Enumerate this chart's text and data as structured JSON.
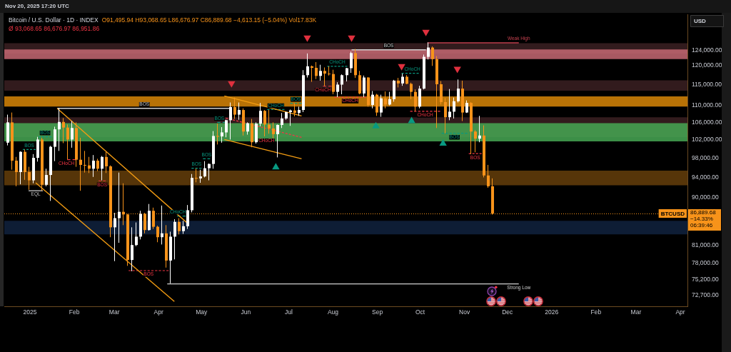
{
  "chart_data": {
    "type": "candlestick",
    "title": "Bitcoin / U.S. Dollar · 1D · INDEX",
    "subtitle": "O91,495.94 H93,068.65 L86,676.97 C86,889.68 −4,613.15 (−5.04%) Vol17.83K",
    "ylabel": "USD",
    "log": true,
    "xlim": [
      "2024-12-14",
      "2026-04-06"
    ],
    "ylim": [
      70950,
      134200
    ],
    "xticks": [
      {
        "value": "2025-01-01",
        "label": "2025"
      },
      {
        "value": "2025-02-01",
        "label": "Feb"
      },
      {
        "value": "2025-03-01",
        "label": "Mar"
      },
      {
        "value": "2025-04-01",
        "label": "Apr"
      },
      {
        "value": "2025-05-01",
        "label": "May"
      },
      {
        "value": "2025-06-01",
        "label": "Jun"
      },
      {
        "value": "2025-07-01",
        "label": "Jul"
      },
      {
        "value": "2025-08-01",
        "label": "Aug"
      },
      {
        "value": "2025-09-01",
        "label": "Sep"
      },
      {
        "value": "2025-10-01",
        "label": "Oct"
      },
      {
        "value": "2025-11-01",
        "label": "Nov"
      },
      {
        "value": "2025-12-01",
        "label": "Dec"
      },
      {
        "value": "2026-01-01",
        "label": "2026"
      },
      {
        "value": "2026-02-01",
        "label": "Feb"
      },
      {
        "value": "2026-03-01",
        "label": "Mar"
      },
      {
        "value": "2026-04-01",
        "label": "Apr"
      }
    ],
    "yticks": [
      {
        "value": 72700,
        "label": "72,700.00"
      },
      {
        "value": 75200,
        "label": "75,200.00"
      },
      {
        "value": 78000,
        "label": "78,000.00"
      },
      {
        "value": 81000,
        "label": "81,000.00"
      },
      {
        "value": 90000,
        "label": "90,000.00"
      },
      {
        "value": 94000,
        "label": "94,000.00"
      },
      {
        "value": 98000,
        "label": "98,000.00"
      },
      {
        "value": 102000,
        "label": "102,000.00"
      },
      {
        "value": 106000,
        "label": "106,000.00"
      },
      {
        "value": 110000,
        "label": "110,000.00"
      },
      {
        "value": 115000,
        "label": "115,000.00"
      },
      {
        "value": 120000,
        "label": "120,000.00"
      },
      {
        "value": 124000,
        "label": "124,000.00"
      }
    ],
    "x": [
      "2024-12-16",
      "2024-12-19",
      "2024-12-22",
      "2024-12-25",
      "2024-12-28",
      "2024-12-31",
      "2025-01-03",
      "2025-01-06",
      "2025-01-09",
      "2025-01-12",
      "2025-01-15",
      "2025-01-18",
      "2025-01-21",
      "2025-01-24",
      "2025-01-27",
      "2025-01-30",
      "2025-02-02",
      "2025-02-05",
      "2025-02-08",
      "2025-02-11",
      "2025-02-14",
      "2025-02-17",
      "2025-02-20",
      "2025-02-23",
      "2025-02-26",
      "2025-03-01",
      "2025-03-04",
      "2025-03-07",
      "2025-03-10",
      "2025-03-13",
      "2025-03-16",
      "2025-03-19",
      "2025-03-22",
      "2025-03-25",
      "2025-03-28",
      "2025-03-31",
      "2025-04-03",
      "2025-04-06",
      "2025-04-09",
      "2025-04-12",
      "2025-04-15",
      "2025-04-18",
      "2025-04-21",
      "2025-04-24",
      "2025-04-27",
      "2025-04-30",
      "2025-05-03",
      "2025-05-06",
      "2025-05-09",
      "2025-05-12",
      "2025-05-15",
      "2025-05-18",
      "2025-05-21",
      "2025-05-24",
      "2025-05-27",
      "2025-05-30",
      "2025-06-02",
      "2025-06-05",
      "2025-06-08",
      "2025-06-11",
      "2025-06-14",
      "2025-06-17",
      "2025-06-20",
      "2025-06-23",
      "2025-06-26",
      "2025-06-29",
      "2025-07-02",
      "2025-07-05",
      "2025-07-08",
      "2025-07-11",
      "2025-07-14",
      "2025-07-17",
      "2025-07-20",
      "2025-07-23",
      "2025-07-26",
      "2025-07-29",
      "2025-08-01",
      "2025-08-04",
      "2025-08-07",
      "2025-08-10",
      "2025-08-13",
      "2025-08-16",
      "2025-08-19",
      "2025-08-22",
      "2025-08-25",
      "2025-08-28",
      "2025-08-31",
      "2025-09-03",
      "2025-09-06",
      "2025-09-09",
      "2025-09-12",
      "2025-09-15",
      "2025-09-18",
      "2025-09-21",
      "2025-09-24",
      "2025-09-27",
      "2025-09-30",
      "2025-10-03",
      "2025-10-06",
      "2025-10-09",
      "2025-10-12",
      "2025-10-15",
      "2025-10-18",
      "2025-10-21",
      "2025-10-24",
      "2025-10-27",
      "2025-10-30",
      "2025-11-02",
      "2025-11-05",
      "2025-11-08",
      "2025-11-11",
      "2025-11-14",
      "2025-11-17",
      "2025-11-20"
    ],
    "ohlc": [
      [
        101400,
        107800,
        100800,
        106000
      ],
      [
        106000,
        108300,
        95600,
        97500
      ],
      [
        97500,
        98300,
        92200,
        95100
      ],
      [
        95100,
        99500,
        92600,
        99400
      ],
      [
        99400,
        99900,
        93500,
        95100
      ],
      [
        95100,
        96200,
        91500,
        93400
      ],
      [
        93400,
        98900,
        92800,
        98100
      ],
      [
        98100,
        102700,
        97300,
        102100
      ],
      [
        102100,
        102500,
        91300,
        92500
      ],
      [
        92500,
        95800,
        92200,
        94500
      ],
      [
        94500,
        100700,
        89300,
        100500
      ],
      [
        100500,
        105000,
        97400,
        104400
      ],
      [
        104400,
        109400,
        99600,
        106100
      ],
      [
        106100,
        107000,
        101300,
        104800
      ],
      [
        104800,
        105500,
        97800,
        102100
      ],
      [
        102100,
        106300,
        100300,
        104700
      ],
      [
        104700,
        106000,
        96200,
        97700
      ],
      [
        97700,
        102500,
        91300,
        96600
      ],
      [
        96600,
        99600,
        95000,
        96500
      ],
      [
        96500,
        98300,
        94900,
        95800
      ],
      [
        95800,
        98700,
        94100,
        97500
      ],
      [
        97500,
        97900,
        95300,
        95800
      ],
      [
        95800,
        98500,
        93400,
        98300
      ],
      [
        98300,
        99500,
        94900,
        96300
      ],
      [
        96300,
        96500,
        82500,
        84300
      ],
      [
        84300,
        87000,
        78300,
        86000
      ],
      [
        86000,
        95000,
        81500,
        87200
      ],
      [
        87200,
        92800,
        84700,
        86700
      ],
      [
        86700,
        86800,
        77500,
        78500
      ],
      [
        78500,
        84300,
        76600,
        81100
      ],
      [
        81100,
        85200,
        80900,
        82600
      ],
      [
        82600,
        87400,
        82100,
        86800
      ],
      [
        86800,
        87000,
        83200,
        83800
      ],
      [
        83800,
        88700,
        83700,
        87400
      ],
      [
        87400,
        88000,
        84000,
        84400
      ],
      [
        84400,
        84600,
        81600,
        82500
      ],
      [
        82500,
        88400,
        81200,
        83200
      ],
      [
        83200,
        84700,
        77200,
        78400
      ],
      [
        78400,
        83500,
        74600,
        82600
      ],
      [
        82600,
        85800,
        78600,
        85300
      ],
      [
        85300,
        86000,
        83000,
        83600
      ],
      [
        83600,
        85500,
        83100,
        84500
      ],
      [
        84500,
        88500,
        84000,
        87500
      ],
      [
        87500,
        94700,
        87100,
        93900
      ],
      [
        93900,
        95800,
        93000,
        93800
      ],
      [
        93800,
        95600,
        92900,
        94200
      ],
      [
        94200,
        97400,
        94000,
        95900
      ],
      [
        95900,
        96900,
        93400,
        96800
      ],
      [
        96800,
        104000,
        95800,
        102900
      ],
      [
        102900,
        105700,
        101000,
        102800
      ],
      [
        102800,
        104900,
        101400,
        103700
      ],
      [
        103700,
        106600,
        102600,
        106500
      ],
      [
        106500,
        110700,
        102100,
        109600
      ],
      [
        109600,
        111900,
        106800,
        107800
      ],
      [
        107800,
        110700,
        106600,
        108900
      ],
      [
        108900,
        109300,
        103000,
        103900
      ],
      [
        103900,
        106000,
        103200,
        105800
      ],
      [
        105800,
        106800,
        100400,
        101500
      ],
      [
        101500,
        106000,
        101200,
        105700
      ],
      [
        105700,
        110600,
        105100,
        108700
      ],
      [
        108700,
        108900,
        102800,
        105500
      ],
      [
        105500,
        108900,
        103400,
        104600
      ],
      [
        104600,
        106000,
        102400,
        103300
      ],
      [
        103300,
        105500,
        98200,
        105400
      ],
      [
        105400,
        108200,
        104700,
        106900
      ],
      [
        106900,
        108500,
        106600,
        108400
      ],
      [
        108400,
        109000,
        105200,
        108800
      ],
      [
        108800,
        110500,
        107400,
        108200
      ],
      [
        108200,
        109700,
        107500,
        108900
      ],
      [
        108900,
        118800,
        108400,
        117500
      ],
      [
        117500,
        123200,
        116900,
        119800
      ],
      [
        119800,
        120000,
        115800,
        119400
      ],
      [
        119400,
        120900,
        116500,
        117300
      ],
      [
        117300,
        120200,
        116100,
        118600
      ],
      [
        118600,
        119500,
        114700,
        117900
      ],
      [
        117900,
        119800,
        117400,
        117800
      ],
      [
        117800,
        118900,
        112700,
        113300
      ],
      [
        113300,
        115700,
        112000,
        115100
      ],
      [
        115100,
        117700,
        112700,
        117500
      ],
      [
        117500,
        119400,
        115900,
        119300
      ],
      [
        119300,
        123700,
        118100,
        123300
      ],
      [
        123300,
        124400,
        116800,
        117500
      ],
      [
        117500,
        118600,
        112700,
        112900
      ],
      [
        112900,
        117400,
        112000,
        116900
      ],
      [
        116900,
        117000,
        109700,
        110100
      ],
      [
        110100,
        113500,
        109300,
        112600
      ],
      [
        112600,
        112800,
        107500,
        108300
      ],
      [
        108300,
        112600,
        107300,
        111700
      ],
      [
        111700,
        113400,
        109300,
        110200
      ],
      [
        110200,
        113300,
        110000,
        111500
      ],
      [
        111500,
        116300,
        110900,
        116100
      ],
      [
        116100,
        116800,
        114400,
        115400
      ],
      [
        115400,
        117900,
        114800,
        117100
      ],
      [
        117100,
        117500,
        115200,
        115300
      ],
      [
        115300,
        115600,
        111500,
        113300
      ],
      [
        113300,
        113900,
        108600,
        109700
      ],
      [
        109700,
        114800,
        109300,
        114100
      ],
      [
        114100,
        122900,
        113900,
        122300
      ],
      [
        122300,
        126200,
        121600,
        124800
      ],
      [
        124800,
        125100,
        119900,
        121700
      ],
      [
        121700,
        122500,
        104700,
        115200
      ],
      [
        115200,
        116000,
        110200,
        110800
      ],
      [
        110800,
        111800,
        103500,
        107200
      ],
      [
        107200,
        114000,
        106500,
        108500
      ],
      [
        108500,
        111900,
        106900,
        111000
      ],
      [
        111000,
        116400,
        110700,
        114100
      ],
      [
        114100,
        116100,
        106300,
        108300
      ],
      [
        108300,
        111200,
        108200,
        110600
      ],
      [
        110600,
        110800,
        98900,
        103900
      ],
      [
        103900,
        104200,
        99300,
        102300
      ],
      [
        102300,
        107500,
        101500,
        103000
      ],
      [
        103000,
        105300,
        94000,
        94400
      ],
      [
        94400,
        96600,
        91900,
        92200
      ],
      [
        92200,
        93800,
        86676.97,
        86889.68
      ]
    ],
    "colors": [
      "#ffffff",
      "#f7931a",
      "#f7931a",
      "#ffffff",
      "#f7931a",
      "#f7931a",
      "#ffffff",
      "#ffffff",
      "#f7931a",
      "#ffffff",
      "#ffffff",
      "#ffffff",
      "#ffffff",
      "#f7931a",
      "#f7931a",
      "#ffffff",
      "#f7931a",
      "#f7931a",
      "#f7931a",
      "#f7931a",
      "#ffffff",
      "#f7931a",
      "#ffffff",
      "#f7931a",
      "#f7931a",
      "#ffffff",
      "#ffffff",
      "#f7931a",
      "#f7931a",
      "#ffffff",
      "#ffffff",
      "#ffffff",
      "#f7931a",
      "#ffffff",
      "#f7931a",
      "#f7931a",
      "#ffffff",
      "#f7931a",
      "#ffffff",
      "#ffffff",
      "#f7931a",
      "#ffffff",
      "#ffffff",
      "#ffffff",
      "#f7931a",
      "#ffffff",
      "#ffffff",
      "#ffffff",
      "#ffffff",
      "#f7931a",
      "#ffffff",
      "#ffffff",
      "#ffffff",
      "#f7931a",
      "#ffffff",
      "#f7931a",
      "#ffffff",
      "#f7931a",
      "#ffffff",
      "#ffffff",
      "#f7931a",
      "#f7931a",
      "#f7931a",
      "#ffffff",
      "#ffffff",
      "#ffffff",
      "#ffffff",
      "#f7931a",
      "#ffffff",
      "#ffffff",
      "#ffffff",
      "#f7931a",
      "#f7931a",
      "#ffffff",
      "#f7931a",
      "#f7931a",
      "#f7931a",
      "#ffffff",
      "#ffffff",
      "#ffffff",
      "#ffffff",
      "#f7931a",
      "#f7931a",
      "#ffffff",
      "#f7931a",
      "#ffffff",
      "#f7931a",
      "#ffffff",
      "#f7931a",
      "#ffffff",
      "#ffffff",
      "#f7931a",
      "#ffffff",
      "#f7931a",
      "#f7931a",
      "#f7931a",
      "#ffffff",
      "#ffffff",
      "#ffffff",
      "#f7931a",
      "#f7931a",
      "#f7931a",
      "#f7931a",
      "#ffffff",
      "#ffffff",
      "#ffffff",
      "#f7931a",
      "#ffffff",
      "#f7931a",
      "#f7931a",
      "#ffffff",
      "#f7931a",
      "#f7931a",
      "#f7931a"
    ],
    "series": [
      {
        "type": "line",
        "x": [
          "2025-01-20",
          "2025-04-21"
        ],
        "values": [
          109300,
          85100
        ],
        "color": "#f39c12"
      },
      {
        "type": "line",
        "x": [
          "2025-01-05",
          "2025-04-12"
        ],
        "values": [
          92900,
          71700
        ],
        "color": "#f39c12"
      },
      {
        "type": "line",
        "x": [
          "2025-05-17",
          "2025-07-10"
        ],
        "values": [
          112300,
          107500
        ],
        "color": "#f39c12"
      },
      {
        "type": "line",
        "x": [
          "2025-05-17",
          "2025-07-10"
        ],
        "values": [
          102100,
          97900
        ],
        "color": "#f39c12"
      },
      {
        "type": "line",
        "name": "BOS",
        "x": [
          "2025-01-20",
          "2025-05-22"
        ],
        "values": [
          109300,
          109300
        ],
        "color": "#cfcfcf"
      },
      {
        "type": "line",
        "name": "BOS",
        "x": [
          "2025-08-14",
          "2025-10-05"
        ],
        "values": [
          124200,
          124200
        ],
        "color": "#cfcfcf"
      },
      {
        "type": "line",
        "name": "Strong Low",
        "x": [
          "2025-04-07",
          "2025-12-09"
        ],
        "values": [
          74500,
          74500
        ],
        "color": "#cfcfcf"
      },
      {
        "type": "line",
        "name": "EQL",
        "x": [
          "2024-12-31",
          "2025-01-10"
        ],
        "values": [
          91300,
          91300
        ],
        "color": "#bdbdbd"
      },
      {
        "type": "line",
        "name": "Weak High",
        "x": [
          "2025-10-06",
          "2025-12-09"
        ],
        "values": [
          126100,
          126100
        ],
        "color": "#c2404e"
      },
      {
        "type": "line",
        "name": "BOS",
        "x": [
          "2024-12-27",
          "2025-01-05"
        ],
        "values": [
          99900,
          99900
        ],
        "color": "#089981",
        "line_style": "dashed"
      },
      {
        "type": "line",
        "name": "BOS",
        "x": [
          "2025-01-07",
          "2025-01-16"
        ],
        "values": [
          102700,
          102700
        ],
        "color": "#089981",
        "line_style": "dashed"
      },
      {
        "type": "line",
        "name": "CHoCH",
        "x": [
          "2025-01-27",
          "2025-02-02"
        ],
        "values": [
          97700,
          97700
        ],
        "color": "#f23645",
        "line_style": "dashed"
      },
      {
        "type": "line",
        "name": "BOS",
        "x": [
          "2025-02-18",
          "2025-02-23"
        ],
        "values": [
          93300,
          93300
        ],
        "color": "#f23645",
        "line_style": "dashed"
      },
      {
        "type": "line",
        "name": "BOS",
        "x": [
          "2025-03-11",
          "2025-04-08"
        ],
        "values": [
          76700,
          76700
        ],
        "color": "#f23645",
        "line_style": "dashed"
      },
      {
        "type": "line",
        "name": "CHoCH",
        "x": [
          "2025-04-14",
          "2025-04-20"
        ],
        "values": [
          86400,
          86400
        ],
        "color": "#089981",
        "line_style": "dashed"
      },
      {
        "type": "line",
        "name": "BOS",
        "x": [
          "2025-04-24",
          "2025-05-01"
        ],
        "values": [
          95900,
          95900
        ],
        "color": "#089981",
        "line_style": "dashed"
      },
      {
        "type": "line",
        "name": "BOS",
        "x": [
          "2025-05-02",
          "2025-05-07"
        ],
        "values": [
          97900,
          97900
        ],
        "color": "#089981",
        "line_style": "dashed"
      },
      {
        "type": "line",
        "name": "BOS",
        "x": [
          "2025-05-12",
          "2025-05-18"
        ],
        "values": [
          106000,
          106000
        ],
        "color": "#089981",
        "line_style": "dashed"
      },
      {
        "type": "line",
        "name": "CHoCH",
        "x": [
          "2025-05-18",
          "2025-07-10"
        ],
        "values": [
          107000,
          102600
        ],
        "color": "#f23645",
        "line_style": "dashed"
      },
      {
        "type": "line",
        "name": "CHoCH",
        "x": [
          "2025-06-16",
          "2025-06-28"
        ],
        "values": [
          109000,
          109000
        ],
        "color": "#089981",
        "line_style": "dashed"
      },
      {
        "type": "line",
        "name": "BOS",
        "x": [
          "2025-07-02",
          "2025-07-10"
        ],
        "values": [
          110500,
          110500
        ],
        "color": "#089981",
        "line_style": "dashed"
      },
      {
        "type": "line",
        "name": "CHoCH",
        "x": [
          "2025-07-28",
          "2025-08-11"
        ],
        "values": [
          119800,
          119800
        ],
        "color": "#089981",
        "line_style": "dashed"
      },
      {
        "type": "line",
        "name": "CHoCH",
        "x": [
          "2025-07-25",
          "2025-07-31"
        ],
        "values": [
          114700,
          114700
        ],
        "color": "#f23645",
        "line_style": "dashed"
      },
      {
        "type": "line",
        "name": "CHoCH",
        "x": [
          "2025-08-02",
          "2025-08-24"
        ],
        "values": [
          112000,
          112000
        ],
        "color": "#f23645",
        "line_style": "dashed"
      },
      {
        "type": "line",
        "name": "CHoCH",
        "x": [
          "2025-09-18",
          "2025-09-30"
        ],
        "values": [
          118000,
          118000
        ],
        "color": "#089981",
        "line_style": "dashed"
      },
      {
        "type": "line",
        "name": "CHoCH",
        "x": [
          "2025-09-24",
          "2025-10-15"
        ],
        "values": [
          108600,
          108600
        ],
        "color": "#f23645",
        "line_style": "dashed"
      },
      {
        "type": "line",
        "name": "BOS",
        "x": [
          "2025-10-16",
          "2025-11-03"
        ],
        "values": [
          103500,
          103500
        ],
        "color": "#089981",
        "line_style": "dashed"
      },
      {
        "type": "line",
        "name": "BOS",
        "x": [
          "2025-11-04",
          "2025-11-13"
        ],
        "values": [
          99000,
          99000
        ],
        "color": "#f23645",
        "line_style": "dashed"
      },
      {
        "type": "scatter",
        "marker": "triangle",
        "color": "#e0303e",
        "x": [
          "2025-05-22",
          "2025-07-14",
          "2025-08-14",
          "2025-09-18",
          "2025-10-05",
          "2025-10-27"
        ],
        "values": [
          115400,
          127500,
          127500,
          119800,
          129100,
          119100
        ]
      },
      {
        "type": "scatter",
        "marker": "triangle",
        "color": "#089981",
        "x": [
          "2025-06-22",
          "2025-08-31",
          "2025-09-25",
          "2025-10-17"
        ],
        "values": [
          96100,
          105100,
          106300,
          101200
        ]
      }
    ],
    "bands": [
      {
        "axis": "y",
        "from": 123200,
        "to": 126000,
        "color": "#3b2022"
      },
      {
        "axis": "y",
        "from": 113600,
        "to": 116200,
        "color": "#3b2022"
      },
      {
        "axis": "y",
        "from": 102600,
        "to": 107200,
        "color": "#3b2022"
      },
      {
        "axis": "y",
        "from": 121700,
        "to": 124300,
        "color": "#c66873"
      },
      {
        "axis": "y",
        "from": 109700,
        "to": 112200,
        "color": "#d88607"
      },
      {
        "axis": "y",
        "from": 101700,
        "to": 105800,
        "color": "#47a854"
      },
      {
        "axis": "y",
        "from": 92400,
        "to": 95400,
        "color": "#653e0b"
      },
      {
        "axis": "y",
        "from": 83000,
        "to": 85500,
        "color": "#10223e"
      }
    ],
    "ref_lines": [
      {
        "axis": "y",
        "value": 86889.68,
        "label": "BTCUSD",
        "color": "#f7931a",
        "line_style": "dotted"
      }
    ],
    "annotations": [
      "Nov 20, 2025 17:20 UTC",
      "Ø 93,068.65 86,676.97 86,951.86",
      "86,889.68",
      "−14.33%",
      "06:39:46"
    ]
  }
}
